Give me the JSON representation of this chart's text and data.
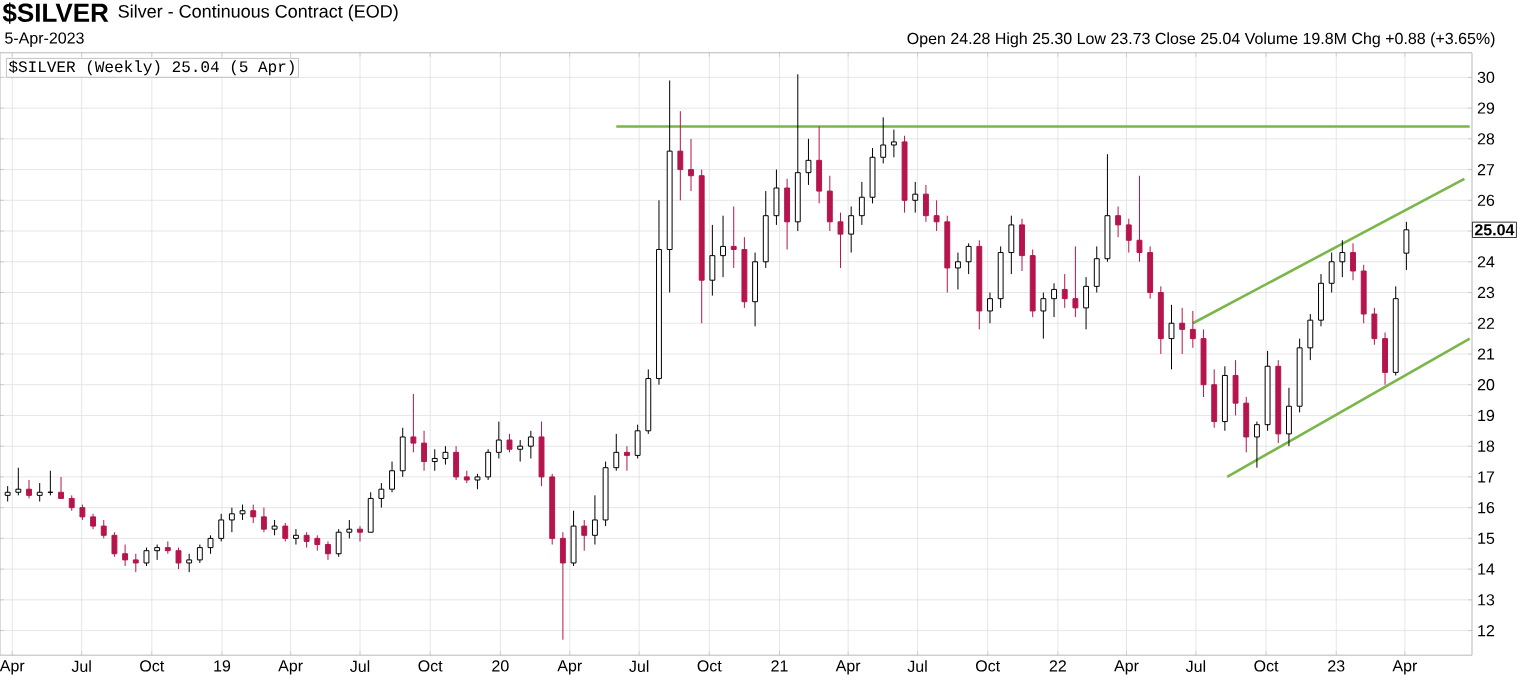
{
  "chart_data": {
    "type": "candlestick",
    "title": "$SILVER",
    "subtitle": "Silver - Continuous Contract (EOD)",
    "annotations": [
      "5-Apr-2023",
      "Open 24.28 High 25.30 Low 23.73 Close 25.04 Volume 19.8M Chg +0.88 (+3.65%)",
      "$SILVER (Weekly) 25.04 (5 Apr)",
      {
        "text": "25.04",
        "y": 25.04
      }
    ],
    "x": [
      "2018-03-26",
      "2018-04-09",
      "2018-04-23",
      "2018-05-07",
      "2018-05-21",
      "2018-06-04",
      "2018-06-18",
      "2018-07-02",
      "2018-07-16",
      "2018-07-30",
      "2018-08-13",
      "2018-08-27",
      "2018-09-10",
      "2018-09-24",
      "2018-10-08",
      "2018-10-22",
      "2018-11-05",
      "2018-11-19",
      "2018-12-03",
      "2018-12-17",
      "2018-12-31",
      "2019-01-14",
      "2019-01-28",
      "2019-02-11",
      "2019-02-25",
      "2019-03-11",
      "2019-03-25",
      "2019-04-08",
      "2019-04-22",
      "2019-05-06",
      "2019-05-20",
      "2019-06-03",
      "2019-06-17",
      "2019-07-01",
      "2019-07-15",
      "2019-07-29",
      "2019-08-12",
      "2019-08-26",
      "2019-09-09",
      "2019-09-23",
      "2019-10-07",
      "2019-10-21",
      "2019-11-04",
      "2019-11-18",
      "2019-12-02",
      "2019-12-16",
      "2019-12-30",
      "2020-01-13",
      "2020-01-27",
      "2020-02-10",
      "2020-02-24",
      "2020-03-09",
      "2020-03-23",
      "2020-04-06",
      "2020-04-20",
      "2020-05-04",
      "2020-05-18",
      "2020-06-01",
      "2020-06-15",
      "2020-06-29",
      "2020-07-13",
      "2020-07-27",
      "2020-08-10",
      "2020-08-24",
      "2020-09-07",
      "2020-09-21",
      "2020-10-05",
      "2020-10-19",
      "2020-11-02",
      "2020-11-16",
      "2020-11-30",
      "2020-12-14",
      "2020-12-28",
      "2021-01-11",
      "2021-01-25",
      "2021-02-08",
      "2021-02-22",
      "2021-03-08",
      "2021-03-22",
      "2021-04-05",
      "2021-04-19",
      "2021-05-03",
      "2021-05-17",
      "2021-05-31",
      "2021-06-14",
      "2021-06-28",
      "2021-07-12",
      "2021-07-26",
      "2021-08-09",
      "2021-08-23",
      "2021-09-06",
      "2021-09-20",
      "2021-10-04",
      "2021-10-18",
      "2021-11-01",
      "2021-11-15",
      "2021-11-29",
      "2021-12-13",
      "2021-12-27",
      "2022-01-10",
      "2022-01-24",
      "2022-02-07",
      "2022-02-21",
      "2022-03-07",
      "2022-03-21",
      "2022-04-04",
      "2022-04-18",
      "2022-05-02",
      "2022-05-16",
      "2022-05-30",
      "2022-06-13",
      "2022-06-27",
      "2022-07-11",
      "2022-07-25",
      "2022-08-08",
      "2022-08-22",
      "2022-09-05",
      "2022-09-19",
      "2022-10-03",
      "2022-10-17",
      "2022-10-31",
      "2022-11-14",
      "2022-11-28",
      "2022-12-12",
      "2022-12-26",
      "2023-01-09",
      "2023-01-23",
      "2023-02-06",
      "2023-02-20",
      "2023-03-06",
      "2023-03-20",
      "2023-04-03"
    ],
    "ohlc": [
      [
        16.4,
        16.7,
        16.2,
        16.5
      ],
      [
        16.5,
        17.3,
        16.4,
        16.6
      ],
      [
        16.6,
        16.9,
        16.3,
        16.4
      ],
      [
        16.4,
        16.8,
        16.2,
        16.5
      ],
      [
        16.5,
        17.2,
        16.4,
        16.5
      ],
      [
        16.5,
        17.0,
        16.3,
        16.3
      ],
      [
        16.3,
        16.4,
        15.9,
        16.0
      ],
      [
        16.0,
        16.1,
        15.6,
        15.7
      ],
      [
        15.7,
        15.8,
        15.3,
        15.4
      ],
      [
        15.4,
        15.6,
        15.0,
        15.1
      ],
      [
        15.1,
        15.2,
        14.4,
        14.5
      ],
      [
        14.5,
        14.8,
        14.1,
        14.3
      ],
      [
        14.3,
        14.5,
        13.9,
        14.2
      ],
      [
        14.2,
        14.7,
        14.1,
        14.6
      ],
      [
        14.6,
        14.8,
        14.3,
        14.7
      ],
      [
        14.7,
        14.9,
        14.5,
        14.6
      ],
      [
        14.6,
        14.7,
        14.0,
        14.2
      ],
      [
        14.2,
        14.5,
        13.9,
        14.3
      ],
      [
        14.3,
        14.8,
        14.2,
        14.7
      ],
      [
        14.7,
        15.1,
        14.5,
        15.0
      ],
      [
        15.0,
        15.8,
        14.9,
        15.6
      ],
      [
        15.6,
        16.0,
        15.2,
        15.8
      ],
      [
        15.8,
        16.1,
        15.6,
        15.9
      ],
      [
        15.9,
        16.1,
        15.5,
        15.7
      ],
      [
        15.7,
        16.0,
        15.2,
        15.3
      ],
      [
        15.3,
        15.6,
        15.1,
        15.4
      ],
      [
        15.4,
        15.5,
        14.9,
        15.0
      ],
      [
        15.0,
        15.3,
        14.8,
        15.1
      ],
      [
        15.1,
        15.2,
        14.7,
        14.9
      ],
      [
        15.0,
        15.1,
        14.6,
        14.8
      ],
      [
        14.8,
        14.9,
        14.3,
        14.5
      ],
      [
        14.5,
        15.3,
        14.4,
        15.2
      ],
      [
        15.2,
        15.6,
        15.0,
        15.3
      ],
      [
        15.3,
        15.4,
        14.9,
        15.2
      ],
      [
        15.2,
        16.5,
        15.2,
        16.3
      ],
      [
        16.3,
        16.8,
        16.0,
        16.6
      ],
      [
        16.6,
        17.5,
        16.5,
        17.2
      ],
      [
        17.2,
        18.6,
        17.0,
        18.3
      ],
      [
        18.3,
        19.7,
        17.8,
        18.1
      ],
      [
        18.1,
        18.5,
        17.2,
        17.5
      ],
      [
        17.5,
        17.9,
        17.2,
        17.6
      ],
      [
        17.6,
        18.0,
        17.4,
        17.8
      ],
      [
        17.8,
        18.0,
        16.9,
        17.0
      ],
      [
        17.0,
        17.2,
        16.8,
        16.9
      ],
      [
        16.9,
        17.1,
        16.6,
        17.0
      ],
      [
        17.0,
        17.9,
        16.9,
        17.8
      ],
      [
        17.8,
        18.8,
        17.6,
        18.2
      ],
      [
        18.2,
        18.4,
        17.8,
        17.9
      ],
      [
        17.9,
        18.2,
        17.5,
        18.0
      ],
      [
        18.0,
        18.5,
        17.6,
        18.3
      ],
      [
        18.3,
        18.8,
        16.7,
        17.0
      ],
      [
        17.0,
        17.1,
        14.8,
        15.0
      ],
      [
        15.0,
        15.2,
        11.7,
        14.2
      ],
      [
        14.2,
        15.9,
        14.1,
        15.4
      ],
      [
        15.4,
        15.6,
        14.6,
        15.1
      ],
      [
        15.1,
        16.4,
        14.8,
        15.6
      ],
      [
        15.6,
        17.5,
        15.4,
        17.3
      ],
      [
        17.3,
        18.4,
        17.2,
        17.8
      ],
      [
        17.8,
        18.0,
        17.2,
        17.7
      ],
      [
        17.7,
        18.7,
        17.6,
        18.5
      ],
      [
        18.5,
        20.5,
        18.4,
        20.2
      ],
      [
        20.2,
        26.0,
        20.0,
        24.4
      ],
      [
        24.4,
        29.9,
        23.0,
        27.6
      ],
      [
        27.6,
        28.9,
        26.0,
        27.0
      ],
      [
        27.0,
        28.0,
        26.3,
        26.8
      ],
      [
        26.8,
        27.0,
        22.0,
        23.4
      ],
      [
        23.4,
        25.2,
        22.9,
        24.2
      ],
      [
        24.2,
        25.5,
        23.5,
        24.5
      ],
      [
        24.5,
        25.8,
        23.8,
        24.4
      ],
      [
        24.4,
        24.8,
        22.5,
        22.7
      ],
      [
        22.7,
        24.3,
        21.9,
        24.0
      ],
      [
        24.0,
        26.3,
        23.8,
        25.5
      ],
      [
        25.5,
        27.0,
        25.2,
        26.4
      ],
      [
        26.4,
        26.7,
        24.4,
        25.3
      ],
      [
        25.3,
        30.1,
        25.0,
        26.9
      ],
      [
        26.9,
        28.0,
        26.5,
        27.3
      ],
      [
        27.3,
        28.4,
        25.9,
        26.3
      ],
      [
        26.3,
        26.8,
        25.0,
        25.3
      ],
      [
        25.3,
        25.6,
        23.8,
        24.9
      ],
      [
        24.9,
        25.8,
        24.3,
        25.5
      ],
      [
        25.5,
        26.6,
        25.2,
        26.1
      ],
      [
        26.1,
        27.7,
        25.9,
        27.4
      ],
      [
        27.4,
        28.7,
        27.2,
        27.8
      ],
      [
        27.8,
        28.3,
        27.4,
        27.9
      ],
      [
        27.9,
        28.1,
        25.6,
        26.0
      ],
      [
        26.0,
        26.6,
        25.6,
        26.2
      ],
      [
        26.2,
        26.5,
        25.3,
        25.5
      ],
      [
        25.5,
        26.0,
        25.0,
        25.3
      ],
      [
        25.3,
        25.5,
        23.0,
        23.8
      ],
      [
        23.8,
        24.3,
        23.1,
        24.0
      ],
      [
        24.0,
        24.6,
        23.6,
        24.5
      ],
      [
        24.5,
        24.7,
        21.8,
        22.4
      ],
      [
        22.4,
        23.0,
        22.0,
        22.8
      ],
      [
        22.8,
        24.5,
        22.5,
        24.3
      ],
      [
        24.3,
        25.5,
        23.6,
        25.2
      ],
      [
        25.2,
        25.4,
        23.7,
        24.2
      ],
      [
        24.2,
        24.4,
        22.2,
        22.4
      ],
      [
        22.4,
        23.0,
        21.5,
        22.8
      ],
      [
        22.8,
        23.3,
        22.2,
        23.1
      ],
      [
        23.1,
        23.6,
        22.5,
        22.8
      ],
      [
        22.8,
        24.5,
        22.2,
        22.5
      ],
      [
        22.5,
        23.5,
        21.8,
        23.2
      ],
      [
        23.2,
        24.5,
        23.0,
        24.1
      ],
      [
        24.1,
        27.5,
        24.0,
        25.5
      ],
      [
        25.5,
        25.8,
        24.8,
        25.2
      ],
      [
        25.2,
        25.4,
        24.3,
        24.7
      ],
      [
        24.7,
        26.8,
        24.0,
        24.3
      ],
      [
        24.3,
        24.5,
        22.8,
        23.0
      ],
      [
        23.0,
        23.2,
        21.0,
        21.5
      ],
      [
        21.5,
        22.6,
        20.5,
        22.0
      ],
      [
        22.0,
        22.5,
        21.0,
        21.8
      ],
      [
        21.8,
        22.4,
        21.2,
        21.5
      ],
      [
        21.5,
        21.8,
        19.6,
        20.0
      ],
      [
        20.0,
        20.5,
        18.6,
        18.8
      ],
      [
        18.8,
        20.6,
        18.5,
        20.3
      ],
      [
        20.3,
        20.8,
        19.0,
        19.4
      ],
      [
        19.4,
        19.6,
        17.8,
        18.3
      ],
      [
        18.3,
        18.8,
        17.3,
        18.7
      ],
      [
        18.7,
        21.1,
        18.5,
        20.6
      ],
      [
        20.6,
        20.8,
        18.1,
        18.4
      ],
      [
        18.4,
        19.9,
        18.0,
        19.3
      ],
      [
        19.3,
        21.5,
        19.1,
        21.2
      ],
      [
        21.2,
        22.3,
        20.8,
        22.1
      ],
      [
        22.1,
        23.6,
        21.9,
        23.3
      ],
      [
        23.3,
        24.3,
        23.0,
        24.0
      ],
      [
        24.0,
        24.7,
        23.5,
        24.3
      ],
      [
        24.3,
        24.6,
        23.4,
        23.7
      ],
      [
        23.7,
        23.9,
        22.0,
        22.3
      ],
      [
        22.3,
        22.5,
        21.3,
        21.5
      ],
      [
        21.5,
        21.7,
        20.0,
        20.4
      ],
      [
        20.4,
        23.2,
        20.3,
        22.8
      ],
      [
        24.28,
        25.3,
        23.73,
        25.04
      ]
    ],
    "series": [
      {
        "type": "line",
        "color": "#7ab648",
        "x": [
          "2020-06-01",
          "2023-06-25"
        ],
        "values": [
          28.4,
          28.4
        ]
      },
      {
        "type": "line",
        "color": "#7ab648",
        "x": [
          "2022-06-27",
          "2023-06-18"
        ],
        "values": [
          22.0,
          26.7
        ]
      },
      {
        "type": "line",
        "color": "#7ab648",
        "x": [
          "2022-08-11",
          "2023-06-25"
        ],
        "values": [
          17.0,
          21.5
        ]
      }
    ],
    "xlim": [
      "2018-03-16",
      "2023-06-28"
    ],
    "ylim": [
      11.2,
      30.8
    ],
    "xticks": [
      {
        "value": "2018-04-01",
        "label": "Apr"
      },
      {
        "value": "2018-07-01",
        "label": "Jul"
      },
      {
        "value": "2018-10-01",
        "label": "Oct"
      },
      {
        "value": "2019-01-01",
        "label": "19"
      },
      {
        "value": "2019-04-01",
        "label": "Apr"
      },
      {
        "value": "2019-07-01",
        "label": "Jul"
      },
      {
        "value": "2019-10-01",
        "label": "Oct"
      },
      {
        "value": "2020-01-01",
        "label": "20"
      },
      {
        "value": "2020-04-01",
        "label": "Apr"
      },
      {
        "value": "2020-07-01",
        "label": "Jul"
      },
      {
        "value": "2020-10-01",
        "label": "Oct"
      },
      {
        "value": "2021-01-01",
        "label": "21"
      },
      {
        "value": "2021-04-01",
        "label": "Apr"
      },
      {
        "value": "2021-07-01",
        "label": "Jul"
      },
      {
        "value": "2021-10-01",
        "label": "Oct"
      },
      {
        "value": "2022-01-01",
        "label": "22"
      },
      {
        "value": "2022-04-01",
        "label": "Apr"
      },
      {
        "value": "2022-07-01",
        "label": "Jul"
      },
      {
        "value": "2022-10-01",
        "label": "Oct"
      },
      {
        "value": "2023-01-01",
        "label": "23"
      },
      {
        "value": "2023-04-01",
        "label": "Apr"
      }
    ],
    "yticks": [
      12,
      13,
      14,
      15,
      16,
      17,
      18,
      19,
      20,
      21,
      22,
      23,
      24,
      {
        "value": 25,
        "label": null
      },
      26,
      27,
      28,
      29,
      30
    ],
    "grid": true
  }
}
